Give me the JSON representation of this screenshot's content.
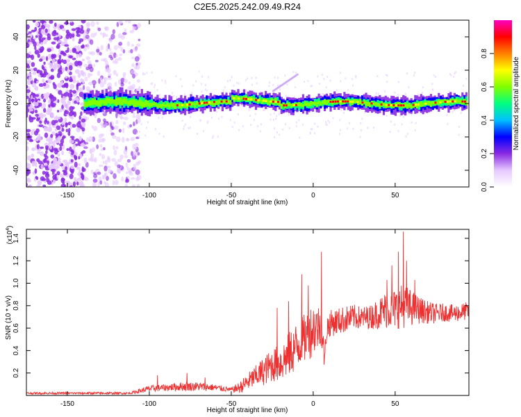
{
  "title": "C2E5.2025.242.09.49.R24",
  "chart_data": [
    {
      "type": "heatmap",
      "xlabel": "Height of straight line (km)",
      "ylabel": "Frequency (Hz)",
      "xlim": [
        -175,
        95
      ],
      "ylim": [
        -50,
        50
      ],
      "xticks": [
        -150,
        -100,
        -50,
        0,
        50
      ],
      "yticks": [
        -40,
        -20,
        0,
        20,
        40
      ],
      "colorbar": {
        "label": "Normalized spectral amplitude",
        "range": [
          0,
          1
        ],
        "ticks": [
          "0.0",
          "0.2",
          "0.4",
          "0.6",
          "0.8"
        ],
        "colors": [
          "#ffffff",
          "#e6c8ff",
          "#8a2be2",
          "#0000ff",
          "#00c0ff",
          "#00ff80",
          "#80ff00",
          "#ffff00",
          "#ff8000",
          "#ff0000",
          "#ff00c0"
        ]
      },
      "features": {
        "noise_region_x": [
          -175,
          -110
        ],
        "noise_region_density": {
          "dense_until": -140,
          "sparse_until": -110
        },
        "ridge_x": [
          -140,
          93
        ],
        "ridge_frequency": 0,
        "ridge_peak_segments": [
          [
            -85,
            -20
          ],
          [
            -20,
            -10
          ],
          [
            10,
            30
          ],
          [
            35,
            93
          ]
        ],
        "high_freq_streak": {
          "x": [
            -25,
            -10
          ],
          "freq": [
            8,
            18
          ]
        }
      }
    },
    {
      "type": "line",
      "xlabel": "Height of straight line (km)",
      "ylabel": "SNR (10 * v/v)",
      "scale_label": "(x10",
      "scale_exponent": "4",
      "xlim": [
        -175,
        95
      ],
      "ylim": [
        0,
        1.48
      ],
      "xticks": [
        -150,
        -100,
        -50,
        0,
        50
      ],
      "yticks": [
        "0.2",
        "0.4",
        "0.6",
        "0.8",
        "1.0",
        "1.2",
        "1.4"
      ],
      "color": "#ef3030",
      "x": [
        -175,
        -150,
        -125,
        -112,
        -100,
        -90,
        -80,
        -70,
        -60,
        -50,
        -45,
        -40,
        -35,
        -30,
        -25,
        -20,
        -15,
        -10,
        -5,
        0,
        5,
        7,
        8,
        10,
        15,
        20,
        25,
        30,
        35,
        40,
        45,
        50,
        55,
        60,
        65,
        70,
        75,
        80,
        85,
        90,
        93
      ],
      "values": [
        0.02,
        0.02,
        0.02,
        0.02,
        0.06,
        0.07,
        0.08,
        0.08,
        0.07,
        0.05,
        0.07,
        0.12,
        0.17,
        0.22,
        0.27,
        0.29,
        0.36,
        0.44,
        0.51,
        0.6,
        0.62,
        0.3,
        0.58,
        0.64,
        0.66,
        0.68,
        0.7,
        0.69,
        0.7,
        0.73,
        0.77,
        0.77,
        0.8,
        0.78,
        0.76,
        0.74,
        0.73,
        0.74,
        0.73,
        0.74,
        0.75
      ],
      "spread": [
        0.01,
        0.01,
        0.01,
        0.01,
        0.03,
        0.03,
        0.04,
        0.04,
        0.03,
        0.02,
        0.05,
        0.08,
        0.1,
        0.13,
        0.15,
        0.17,
        0.2,
        0.22,
        0.22,
        0.25,
        0.18,
        0.1,
        0.14,
        0.12,
        0.12,
        0.12,
        0.11,
        0.1,
        0.11,
        0.14,
        0.17,
        0.18,
        0.2,
        0.16,
        0.12,
        0.1,
        0.09,
        0.08,
        0.08,
        0.08,
        0.08
      ],
      "peaks": [
        [
          5,
          1.28
        ],
        [
          -7,
          1.08
        ],
        [
          -3,
          0.98
        ],
        [
          55,
          1.46
        ],
        [
          52,
          1.28
        ],
        [
          57,
          1.2
        ],
        [
          45,
          1.03
        ],
        [
          48,
          1.16
        ],
        [
          62,
          1.03
        ],
        [
          -22,
          0.78
        ],
        [
          -15,
          0.84
        ],
        [
          -95,
          0.18
        ],
        [
          -77,
          0.2
        ],
        [
          -66,
          0.16
        ]
      ]
    }
  ]
}
